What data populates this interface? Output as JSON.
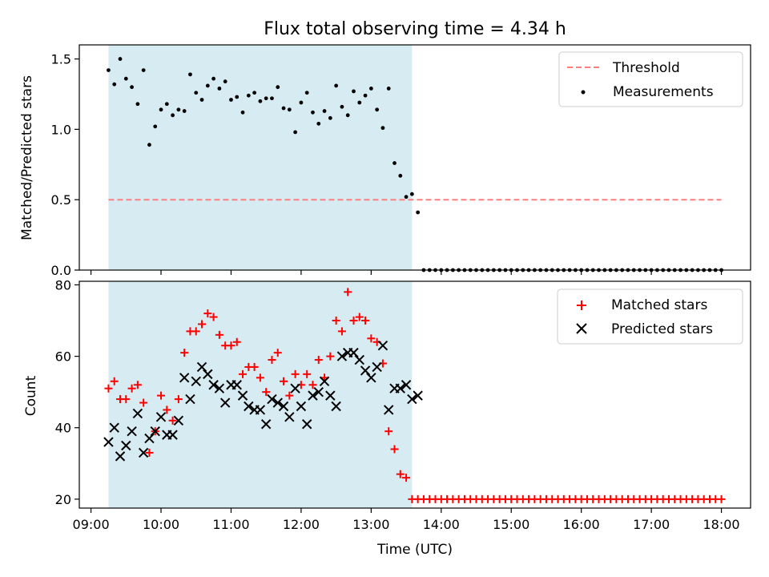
{
  "chart_data": [
    {
      "type": "scatter",
      "title": "Flux total observing time = 4.34 h",
      "xlabel": "",
      "ylabel": "Matched/Predicted stars",
      "ylim": [
        0,
        1.6
      ],
      "yticks": [
        0.0,
        0.5,
        1.0,
        1.5
      ],
      "ytick_labels": [
        "0.0",
        "0.5",
        "1.0",
        "1.5"
      ],
      "shaded_span": [
        "09:15",
        "13:35"
      ],
      "legend_position": "top-right",
      "grid": false,
      "colors": {
        "threshold": "#ff7f7f",
        "measurements": "#000000",
        "span": "#add8e6"
      },
      "series": [
        {
          "name": "Threshold",
          "kind": "dashed-line",
          "x": [
            "09:15",
            "18:00"
          ],
          "y": [
            0.5,
            0.5
          ]
        },
        {
          "name": "Measurements",
          "kind": "dot",
          "x": [
            "09:15",
            "09:20",
            "09:25",
            "09:30",
            "09:35",
            "09:40",
            "09:45",
            "09:50",
            "09:55",
            "10:00",
            "10:05",
            "10:10",
            "10:15",
            "10:20",
            "10:25",
            "10:30",
            "10:35",
            "10:40",
            "10:45",
            "10:50",
            "10:55",
            "11:00",
            "11:05",
            "11:10",
            "11:15",
            "11:20",
            "11:25",
            "11:30",
            "11:35",
            "11:40",
            "11:45",
            "11:50",
            "11:55",
            "12:00",
            "12:05",
            "12:10",
            "12:15",
            "12:20",
            "12:25",
            "12:30",
            "12:35",
            "12:40",
            "12:45",
            "12:50",
            "12:55",
            "13:00",
            "13:05",
            "13:10",
            "13:15",
            "13:20",
            "13:25",
            "13:30",
            "13:35",
            "13:40",
            "13:45",
            "13:50",
            "13:55",
            "14:00",
            "14:05",
            "14:10",
            "14:15",
            "14:20",
            "14:25",
            "14:30",
            "14:35",
            "14:40",
            "14:45",
            "14:50",
            "14:55",
            "15:00",
            "15:05",
            "15:10",
            "15:15",
            "15:20",
            "15:25",
            "15:30",
            "15:35",
            "15:40",
            "15:45",
            "15:50",
            "15:55",
            "16:00",
            "16:05",
            "16:10",
            "16:15",
            "16:20",
            "16:25",
            "16:30",
            "16:35",
            "16:40",
            "16:45",
            "16:50",
            "16:55",
            "17:00",
            "17:05",
            "17:10",
            "17:15",
            "17:20",
            "17:25",
            "17:30",
            "17:35",
            "17:40",
            "17:45",
            "17:50",
            "17:55",
            "18:00"
          ],
          "y": [
            1.42,
            1.32,
            1.5,
            1.36,
            1.3,
            1.18,
            1.42,
            0.89,
            1.02,
            1.14,
            1.18,
            1.1,
            1.14,
            1.13,
            1.39,
            1.26,
            1.21,
            1.31,
            1.36,
            1.29,
            1.34,
            1.21,
            1.23,
            1.12,
            1.24,
            1.26,
            1.2,
            1.22,
            1.22,
            1.3,
            1.15,
            1.14,
            0.98,
            1.19,
            1.26,
            1.12,
            1.04,
            1.13,
            1.08,
            1.31,
            1.16,
            1.1,
            1.27,
            1.19,
            1.24,
            1.29,
            1.14,
            1.01,
            1.29,
            0.76,
            0.67,
            0.52,
            0.54,
            0.41,
            0.0,
            0.0,
            0.0,
            0.0,
            0.0,
            0.0,
            0.0,
            0.0,
            0.0,
            0.0,
            0.0,
            0.0,
            0.0,
            0.0,
            0.0,
            0.0,
            0.0,
            0.0,
            0.0,
            0.0,
            0.0,
            0.0,
            0.0,
            0.0,
            0.0,
            0.0,
            0.0,
            0.0,
            0.0,
            0.0,
            0.0,
            0.0,
            0.0,
            0.0,
            0.0,
            0.0,
            0.0,
            0.0,
            0.0,
            0.0,
            0.0,
            0.0,
            0.0,
            0.0,
            0.0,
            0.0,
            0.0,
            0.0,
            0.0,
            0.0,
            0.0,
            0.0
          ]
        }
      ]
    },
    {
      "type": "scatter",
      "title": "",
      "xlabel": "Time (UTC)",
      "ylabel": "Count",
      "ylim": [
        17.5,
        81
      ],
      "yticks": [
        20,
        40,
        60,
        80
      ],
      "ytick_labels": [
        "20",
        "40",
        "60",
        "80"
      ],
      "xlim": [
        "08:50",
        "18:25"
      ],
      "xticks": [
        "09:00",
        "10:00",
        "11:00",
        "12:00",
        "13:00",
        "14:00",
        "15:00",
        "16:00",
        "17:00",
        "18:00"
      ],
      "xtick_labels": [
        "09:00",
        "10:00",
        "11:00",
        "12:00",
        "13:00",
        "14:00",
        "15:00",
        "16:00",
        "17:00",
        "18:00"
      ],
      "shaded_span": [
        "09:15",
        "13:35"
      ],
      "legend_position": "top-right",
      "grid": false,
      "colors": {
        "matched": "#ff0000",
        "predicted": "#000000",
        "span": "#add8e6"
      },
      "series": [
        {
          "name": "Matched stars",
          "kind": "plus",
          "x": [
            "09:15",
            "09:20",
            "09:25",
            "09:30",
            "09:35",
            "09:40",
            "09:45",
            "09:50",
            "09:55",
            "10:00",
            "10:05",
            "10:10",
            "10:15",
            "10:20",
            "10:25",
            "10:30",
            "10:35",
            "10:40",
            "10:45",
            "10:50",
            "10:55",
            "11:00",
            "11:05",
            "11:10",
            "11:15",
            "11:20",
            "11:25",
            "11:30",
            "11:35",
            "11:40",
            "11:45",
            "11:50",
            "11:55",
            "12:00",
            "12:05",
            "12:10",
            "12:15",
            "12:20",
            "12:25",
            "12:30",
            "12:35",
            "12:40",
            "12:45",
            "12:50",
            "12:55",
            "13:00",
            "13:05",
            "13:10",
            "13:15",
            "13:20",
            "13:25",
            "13:30",
            "13:35",
            "13:40",
            "13:45",
            "13:50",
            "13:55",
            "14:00",
            "14:05",
            "14:10",
            "14:15",
            "14:20",
            "14:25",
            "14:30",
            "14:35",
            "14:40",
            "14:45",
            "14:50",
            "14:55",
            "15:00",
            "15:05",
            "15:10",
            "15:15",
            "15:20",
            "15:25",
            "15:30",
            "15:35",
            "15:40",
            "15:45",
            "15:50",
            "15:55",
            "16:00",
            "16:05",
            "16:10",
            "16:15",
            "16:20",
            "16:25",
            "16:30",
            "16:35",
            "16:40",
            "16:45",
            "16:50",
            "16:55",
            "17:00",
            "17:05",
            "17:10",
            "17:15",
            "17:20",
            "17:25",
            "17:30",
            "17:35",
            "17:40",
            "17:45",
            "17:50",
            "17:55",
            "18:00"
          ],
          "y": [
            51,
            53,
            48,
            48,
            51,
            52,
            47,
            33,
            39,
            49,
            45,
            42,
            48,
            61,
            67,
            67,
            69,
            72,
            71,
            66,
            63,
            63,
            64,
            55,
            57,
            57,
            54,
            50,
            59,
            61,
            53,
            49,
            55,
            52,
            55,
            52,
            59,
            54,
            60,
            70,
            67,
            78,
            70,
            71,
            70,
            65,
            64,
            58,
            39,
            34,
            27,
            26,
            20,
            20,
            20,
            20,
            20,
            20,
            20,
            20,
            20,
            20,
            20,
            20,
            20,
            20,
            20,
            20,
            20,
            20,
            20,
            20,
            20,
            20,
            20,
            20,
            20,
            20,
            20,
            20,
            20,
            20,
            20,
            20,
            20,
            20,
            20,
            20,
            20,
            20,
            20,
            20,
            20,
            20,
            20,
            20,
            20,
            20,
            20,
            20,
            20,
            20,
            20,
            20,
            20,
            20
          ]
        },
        {
          "name": "Predicted stars",
          "kind": "x",
          "x": [
            "09:15",
            "09:20",
            "09:25",
            "09:30",
            "09:35",
            "09:40",
            "09:45",
            "09:50",
            "09:55",
            "10:00",
            "10:05",
            "10:10",
            "10:15",
            "10:20",
            "10:25",
            "10:30",
            "10:35",
            "10:40",
            "10:45",
            "10:50",
            "10:55",
            "11:00",
            "11:05",
            "11:10",
            "11:15",
            "11:20",
            "11:25",
            "11:30",
            "11:35",
            "11:40",
            "11:45",
            "11:50",
            "11:55",
            "12:00",
            "12:05",
            "12:10",
            "12:15",
            "12:20",
            "12:25",
            "12:30",
            "12:35",
            "12:40",
            "12:45",
            "12:50",
            "12:55",
            "13:00",
            "13:05",
            "13:10",
            "13:15",
            "13:20",
            "13:25",
            "13:30",
            "13:35",
            "13:40"
          ],
          "y": [
            36,
            40,
            32,
            35,
            39,
            44,
            33,
            37,
            39,
            43,
            38,
            38,
            42,
            54,
            48,
            53,
            57,
            55,
            52,
            51,
            47,
            52,
            52,
            49,
            46,
            45,
            45,
            41,
            48,
            47,
            46,
            43,
            51,
            46,
            41,
            49,
            50,
            53,
            49,
            46,
            60,
            61,
            61,
            59,
            56,
            54,
            57,
            63,
            45,
            51,
            51,
            52,
            48,
            49
          ]
        }
      ]
    }
  ]
}
